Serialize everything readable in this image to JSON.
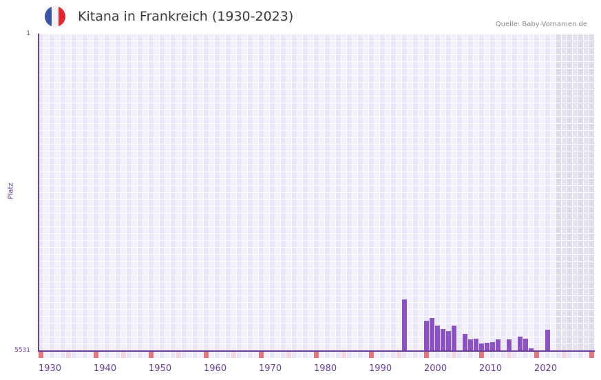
{
  "header": {
    "title": "Kitana in Frankreich (1930-2023)",
    "source": "Quelle: Baby-Vornamen.de",
    "flag_icon": "france-flag-icon",
    "flag_colors": [
      "#3a55a4",
      "#f3f3f5",
      "#e3262f"
    ]
  },
  "colors": {
    "bar": "#8c52c6",
    "axis": "#6b3fa0",
    "grid_a": "#ece7f8",
    "grid_b": "#f3f0fc",
    "future_a": "#e0dcec",
    "future_b": "#e6e2f0",
    "decade_marker": "#e57680",
    "half_decade_marker": "#f4d6df",
    "minor_marker_a": "#ece7f8",
    "minor_marker_b": "#f3f0fc"
  },
  "axis": {
    "y_top_label": "1",
    "y_bottom_label": "5531",
    "y_title": "Platz",
    "x_ticks": [
      "1930",
      "1940",
      "1950",
      "1960",
      "1970",
      "1980",
      "1990",
      "2000",
      "2010",
      "2020"
    ]
  },
  "chart_data": {
    "type": "bar",
    "title": "Kitana in Frankreich (1930-2023)",
    "xlabel": "",
    "ylabel": "Platz",
    "y_inverted": true,
    "ylim": [
      1,
      5531
    ],
    "xlim": [
      1930,
      2030
    ],
    "grid": true,
    "future_shaded_from": 2024,
    "categories": [
      1996,
      2000,
      2001,
      2002,
      2003,
      2004,
      2005,
      2007,
      2008,
      2009,
      2010,
      2011,
      2012,
      2013,
      2015,
      2017,
      2018,
      2019,
      2022
    ],
    "values": [
      4629,
      5002,
      4954,
      5086,
      5146,
      5182,
      5086,
      5230,
      5327,
      5315,
      5399,
      5387,
      5375,
      5327,
      5327,
      5279,
      5315,
      5483,
      5158
    ]
  }
}
